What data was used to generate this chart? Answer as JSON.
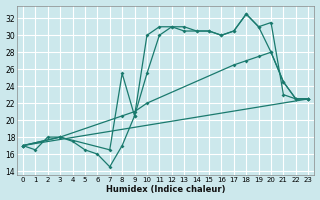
{
  "xlabel": "Humidex (Indice chaleur)",
  "bg_color": "#cce8ec",
  "grid_color": "#ffffff",
  "line_color": "#1a7a6e",
  "xlim": [
    -0.5,
    23.5
  ],
  "ylim": [
    13.5,
    33.5
  ],
  "xticks": [
    0,
    1,
    2,
    3,
    4,
    5,
    6,
    7,
    8,
    9,
    10,
    11,
    12,
    13,
    14,
    15,
    16,
    17,
    18,
    19,
    20,
    21,
    22,
    23
  ],
  "yticks": [
    14,
    16,
    18,
    20,
    22,
    24,
    26,
    28,
    30,
    32
  ],
  "series": [
    {
      "x": [
        0,
        1,
        2,
        3,
        4,
        5,
        6,
        7,
        8,
        9,
        10,
        11,
        12,
        13,
        14,
        15,
        16,
        17,
        18,
        19,
        20,
        21,
        22,
        23
      ],
      "y": [
        17,
        16.5,
        18,
        18,
        17.5,
        16.5,
        16,
        14.5,
        17,
        20.5,
        25.5,
        30,
        31,
        31,
        30.5,
        30.5,
        30,
        30.5,
        32.5,
        31,
        31.5,
        23,
        22.5,
        22.5
      ]
    },
    {
      "x": [
        0,
        3,
        7,
        8,
        9,
        10,
        11,
        12,
        13,
        14,
        15,
        16,
        17,
        18,
        19,
        20,
        21,
        22,
        23
      ],
      "y": [
        17,
        18,
        16.5,
        25.5,
        20.5,
        30,
        31,
        31,
        30.5,
        30.5,
        30.5,
        30,
        30.5,
        32.5,
        31,
        28,
        24.5,
        22.5,
        22.5
      ]
    },
    {
      "x": [
        0,
        23
      ],
      "y": [
        17,
        22.5
      ]
    },
    {
      "x": [
        0,
        3,
        8,
        9,
        10,
        17,
        18,
        19,
        20,
        21,
        22,
        23
      ],
      "y": [
        17,
        18,
        20.5,
        21,
        22,
        26.5,
        27,
        27.5,
        28,
        24.5,
        22.5,
        22.5
      ]
    }
  ]
}
